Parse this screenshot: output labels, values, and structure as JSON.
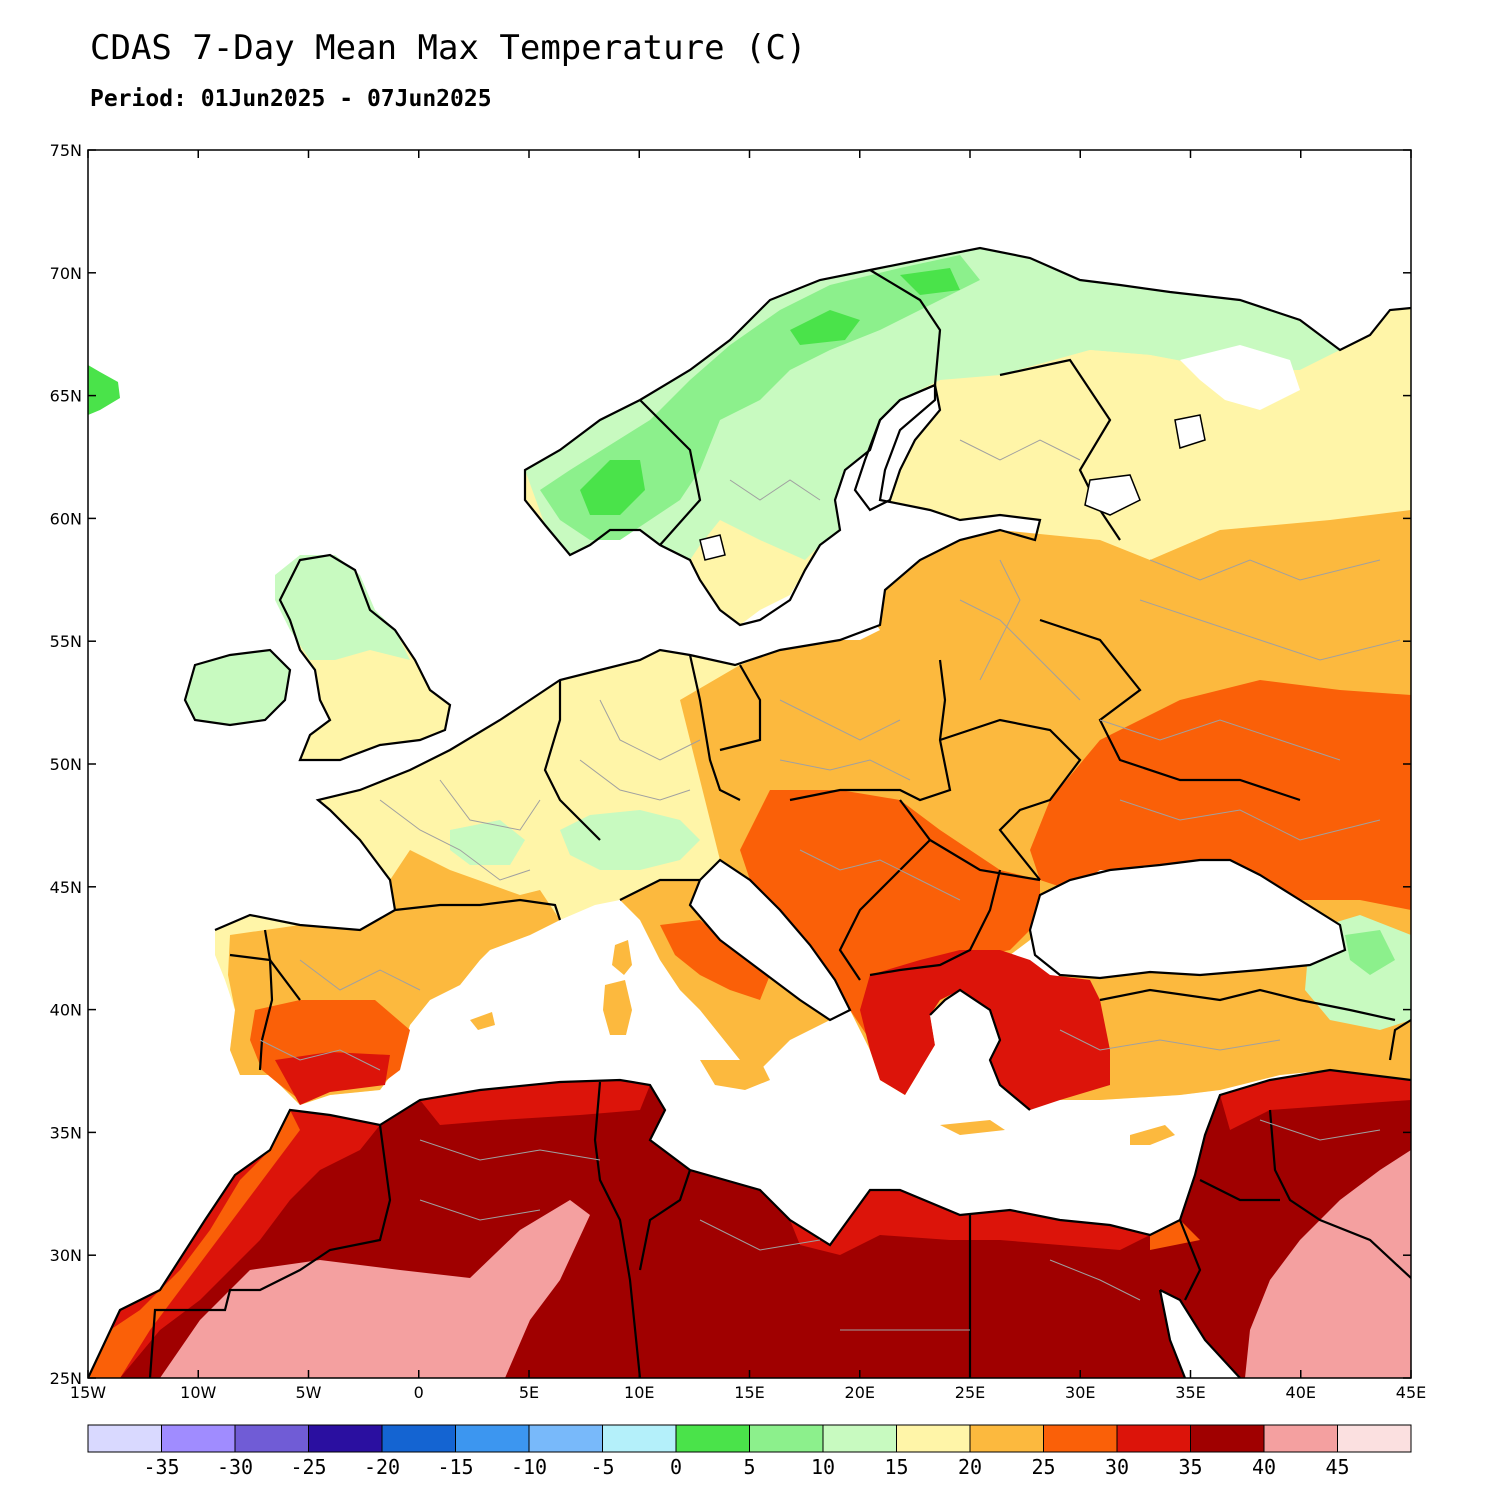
{
  "header": {
    "title": "CDAS 7-Day Mean Max Temperature (C)",
    "period": "Period: 01Jun2025 - 07Jun2025"
  },
  "map": {
    "lon_range": [
      -15,
      45
    ],
    "lat_range": [
      25,
      75
    ],
    "lon_ticks": [
      "15W",
      "10W",
      "5W",
      "0",
      "5E",
      "10E",
      "15E",
      "20E",
      "25E",
      "30E",
      "35E",
      "40E",
      "45E"
    ],
    "lat_ticks": [
      "25N",
      "30N",
      "35N",
      "40N",
      "45N",
      "50N",
      "55N",
      "60N",
      "65N",
      "70N",
      "75N"
    ],
    "colors": {
      "sea": "#ffffff",
      "border": "#000000",
      "admin": "#a0a0a0"
    }
  },
  "colorbar": {
    "colors": [
      "#d9d9ff",
      "#a08cff",
      "#705cd6",
      "#2a0fa0",
      "#1464d2",
      "#3c96f0",
      "#78b9fa",
      "#b4f0fa",
      "#4ae34a",
      "#8cf08c",
      "#c8fac0",
      "#fff5a8",
      "#fcb93e",
      "#fa6008",
      "#dc140a",
      "#a00000",
      "#f4a0a0",
      "#fbe0e0"
    ],
    "labels": [
      "-35",
      "-30",
      "-25",
      "-20",
      "-15",
      "-10",
      "-5",
      "0",
      "5",
      "10",
      "15",
      "20",
      "25",
      "30",
      "35",
      "40",
      "45"
    ]
  }
}
